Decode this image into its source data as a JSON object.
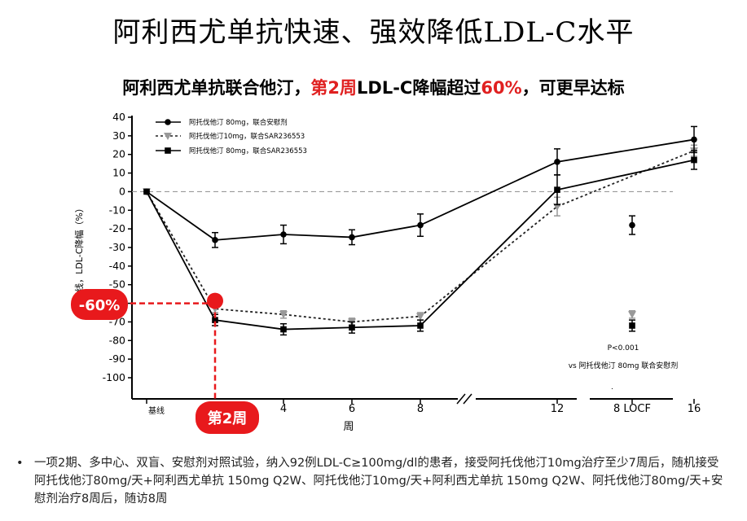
{
  "header": {
    "title": "阿利西尤单抗快速、强效降低LDL-C水平",
    "subtitle_pre": "阿利西尤单抗联合他汀，",
    "subtitle_hl1": "第2周",
    "subtitle_mid": "LDL-C降幅超过",
    "subtitle_hl2": "60%",
    "subtitle_post": "，可更早达标"
  },
  "chart_data": {
    "type": "line",
    "title": "",
    "xlabel": "周",
    "ylabel": "基线，LDL-C降幅（%）",
    "ylim": [
      -110,
      40
    ],
    "yticks": [
      40,
      30,
      20,
      10,
      0,
      -10,
      -20,
      -30,
      -40,
      -50,
      -60,
      -70,
      -80,
      -90,
      -100
    ],
    "x_tick_labels": [
      "基线",
      "4",
      "6",
      "8",
      "12",
      "16"
    ],
    "x": [
      0,
      4,
      6,
      8,
      12,
      16
    ],
    "extra_category": "8 LOCF",
    "reference_line_y": 0,
    "series": [
      {
        "name": "阿托伐他汀 80mg，联合安慰剂",
        "marker": "circle",
        "line_style": "solid",
        "color": "#000000",
        "x": [
          0,
          2,
          4,
          6,
          8,
          12,
          16
        ],
        "values": [
          0,
          -26,
          -23,
          -24.5,
          -18,
          16,
          28
        ],
        "errors": [
          0,
          4,
          5,
          4,
          6,
          7,
          7
        ],
        "locf": -18,
        "locf_error": 5
      },
      {
        "name": "阿托伐他汀10mg，联合SAR236553",
        "marker": "triangle",
        "line_style": "dotted",
        "color": "#999999",
        "x": [
          0,
          2,
          4,
          6,
          8,
          12,
          16
        ],
        "values": [
          0,
          -63,
          -66,
          -70,
          -67,
          -8,
          22
        ],
        "errors": [
          0,
          2,
          2,
          2,
          2,
          5,
          3
        ],
        "locf": -66,
        "locf_error": 2
      },
      {
        "name": "阿托伐他汀 80mg，联合SAR236553",
        "marker": "square",
        "line_style": "solid",
        "color": "#000000",
        "x": [
          0,
          2,
          4,
          6,
          8,
          12,
          16
        ],
        "values": [
          0,
          -69,
          -74,
          -73,
          -72,
          1,
          17
        ],
        "errors": [
          0,
          3,
          3,
          3,
          3,
          8,
          5
        ],
        "locf": -72,
        "locf_error": 3
      }
    ],
    "annotations": {
      "callout_value": "-60%",
      "callout_week": "第2周",
      "pvalue": "P<0.001",
      "pvalue_ref": "vs 阿托伐他汀 80mg 联合安慰剂",
      "dot": "."
    }
  },
  "footnote": {
    "bullet": "•",
    "text": "一项2期、多中心、双盲、安慰剂对照试验，纳入92例LDL-C≥100mg/dl的患者，接受阿托伐他汀10mg治疗至少7周后，随机接受阿托伐他汀80mg/天+阿利西尤单抗 150mg Q2W、阿托伐他汀10mg/天+阿利西尤单抗 150mg Q2W、阿托伐他汀80mg/天+安慰剂治疗8周后，随访8周"
  },
  "colors": {
    "accent": "#e02020",
    "callout": "#e8191c",
    "reference_line": "#999999"
  }
}
